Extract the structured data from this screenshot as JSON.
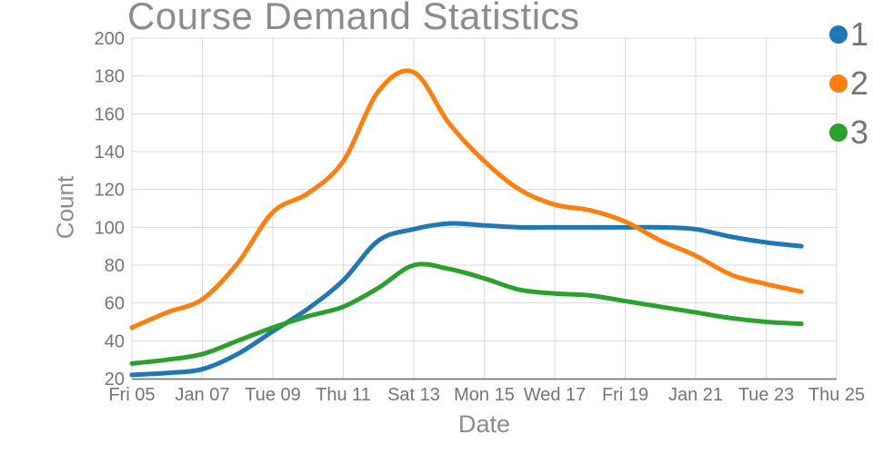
{
  "chart_data": {
    "type": "line",
    "title": "Course Demand Statistics",
    "xlabel": "Date",
    "ylabel": "Count",
    "line_shape": "spline",
    "grid": true,
    "legend_position": "top-right",
    "x": [
      "Jan 05",
      "Jan 06",
      "Jan 07",
      "Jan 08",
      "Jan 09",
      "Jan 10",
      "Jan 11",
      "Jan 12",
      "Jan 13",
      "Jan 14",
      "Jan 15",
      "Jan 16",
      "Jan 17",
      "Jan 18",
      "Jan 19",
      "Jan 20",
      "Jan 21",
      "Jan 22",
      "Jan 23",
      "Jan 24"
    ],
    "x_tick_labels": [
      "Fri 05",
      "Jan 07",
      "Tue 09",
      "Thu 11",
      "Sat 13",
      "Mon 15",
      "Wed 17",
      "Fri 19",
      "Jan 21",
      "Tue 23",
      "Thu 25"
    ],
    "y_ticks": [
      20,
      40,
      60,
      80,
      100,
      120,
      140,
      160,
      180,
      200
    ],
    "ylim": [
      20,
      200
    ],
    "series": [
      {
        "name": "1",
        "color": "#1f77b4",
        "values": [
          22,
          23,
          25,
          33,
          45,
          57,
          72,
          93,
          99,
          102,
          101,
          100,
          100,
          100,
          100,
          100,
          99,
          95,
          92,
          90
        ]
      },
      {
        "name": "2",
        "color": "#ff7f0e",
        "values": [
          47,
          55,
          62,
          81,
          108,
          118,
          135,
          172,
          182,
          155,
          135,
          120,
          112,
          109,
          103,
          93,
          85,
          75,
          70,
          66
        ]
      },
      {
        "name": "3",
        "color": "#2ca02c",
        "values": [
          28,
          30,
          33,
          40,
          47,
          53,
          58,
          68,
          80,
          78,
          73,
          67,
          65,
          64,
          61,
          58,
          55,
          52,
          50,
          49
        ]
      }
    ],
    "colors": {
      "grid": "#d9d9d9",
      "axis_line": "#6e6e6e",
      "tick_text": "#757575",
      "title_text": "#8c8c8c",
      "legend_text": "#757575"
    }
  }
}
